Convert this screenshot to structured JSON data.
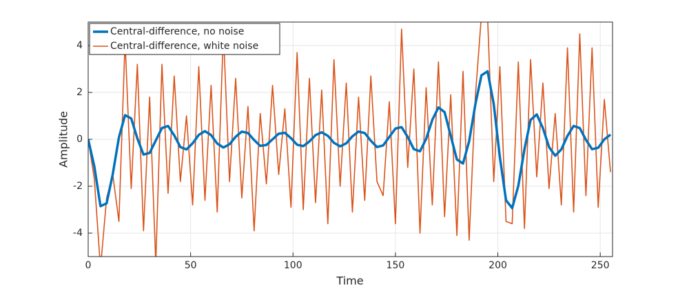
{
  "chart_data": {
    "type": "line",
    "xlabel": "Time",
    "ylabel": "Amplitude",
    "x": [
      0,
      3,
      6,
      9,
      12,
      15,
      18,
      21,
      24,
      27,
      30,
      33,
      36,
      39,
      42,
      45,
      48,
      51,
      54,
      57,
      60,
      63,
      66,
      69,
      72,
      75,
      78,
      81,
      84,
      87,
      90,
      93,
      96,
      99,
      102,
      105,
      108,
      111,
      114,
      117,
      120,
      123,
      126,
      129,
      132,
      135,
      138,
      141,
      144,
      147,
      150,
      153,
      156,
      159,
      162,
      165,
      168,
      171,
      174,
      177,
      180,
      183,
      186,
      189,
      192,
      195,
      198,
      201,
      204,
      207,
      210,
      213,
      216,
      219,
      222,
      225,
      228,
      231,
      234,
      237,
      240,
      243,
      246,
      249,
      252,
      255
    ],
    "series": [
      {
        "name": "Central-difference, no noise",
        "color": "#0072bd",
        "width": 3.5,
        "values": [
          0,
          -1.16,
          -2.85,
          -2.73,
          -1.48,
          0.08,
          1.03,
          0.89,
          0.04,
          -0.65,
          -0.58,
          -0.05,
          0.48,
          0.57,
          0.17,
          -0.33,
          -0.43,
          -0.17,
          0.19,
          0.35,
          0.18,
          -0.18,
          -0.35,
          -0.21,
          0.11,
          0.33,
          0.27,
          -0.03,
          -0.28,
          -0.24,
          0,
          0.24,
          0.28,
          0.05,
          -0.23,
          -0.29,
          -0.09,
          0.18,
          0.3,
          0.15,
          -0.15,
          -0.3,
          -0.17,
          0.13,
          0.33,
          0.27,
          -0.06,
          -0.33,
          -0.26,
          0.1,
          0.46,
          0.52,
          0.1,
          -0.42,
          -0.51,
          0.02,
          0.83,
          1.36,
          1.16,
          0.15,
          -0.86,
          -1.03,
          -0.08,
          1.48,
          2.73,
          2.9,
          1.5,
          -0.77,
          -2.6,
          -2.93,
          -1.98,
          -0.42,
          0.83,
          1.06,
          0.48,
          -0.33,
          -0.7,
          -0.43,
          0.15,
          0.57,
          0.48,
          -0.02,
          -0.42,
          -0.36,
          0,
          0.2
        ]
      },
      {
        "name": "Central-difference, white noise",
        "color": "#d95319",
        "width": 1.6,
        "values": [
          0,
          -1.7,
          -5.5,
          -2.5,
          -1.5,
          -3.5,
          4.2,
          -2.1,
          3.2,
          -3.9,
          1.8,
          -5.3,
          3.2,
          -2.3,
          2.7,
          -1.8,
          1.0,
          -2.8,
          3.1,
          -2.6,
          2.3,
          -3.1,
          4.6,
          -1.8,
          2.6,
          -2.5,
          1.4,
          -3.9,
          1.1,
          -1.9,
          2.3,
          -1.5,
          1.3,
          -2.9,
          3.7,
          -3.0,
          2.6,
          -2.7,
          2.1,
          -3.6,
          3.4,
          -2.0,
          2.4,
          -3.1,
          1.8,
          -2.6,
          2.7,
          -1.8,
          -2.4,
          1.6,
          -3.6,
          4.7,
          -1.2,
          3.0,
          -4.0,
          2.2,
          -2.8,
          3.3,
          -3.3,
          1.9,
          -4.1,
          2.9,
          -4.3,
          1.8,
          5.3,
          5.2,
          -1.8,
          3.1,
          -3.5,
          -3.6,
          3.3,
          -3.8,
          3.4,
          -1.6,
          2.4,
          -2.1,
          1.1,
          -2.8,
          3.9,
          -3.1,
          4.5,
          -2.4,
          3.9,
          -2.9,
          1.7,
          -1.4
        ]
      }
    ],
    "xlim": [
      0,
      256
    ],
    "xticks": [
      0,
      50,
      100,
      150,
      200,
      250
    ],
    "ylim": [
      -5,
      5
    ],
    "yticks": [
      -4,
      -2,
      0,
      2,
      4
    ],
    "grid": true,
    "legend": "upper-left"
  }
}
